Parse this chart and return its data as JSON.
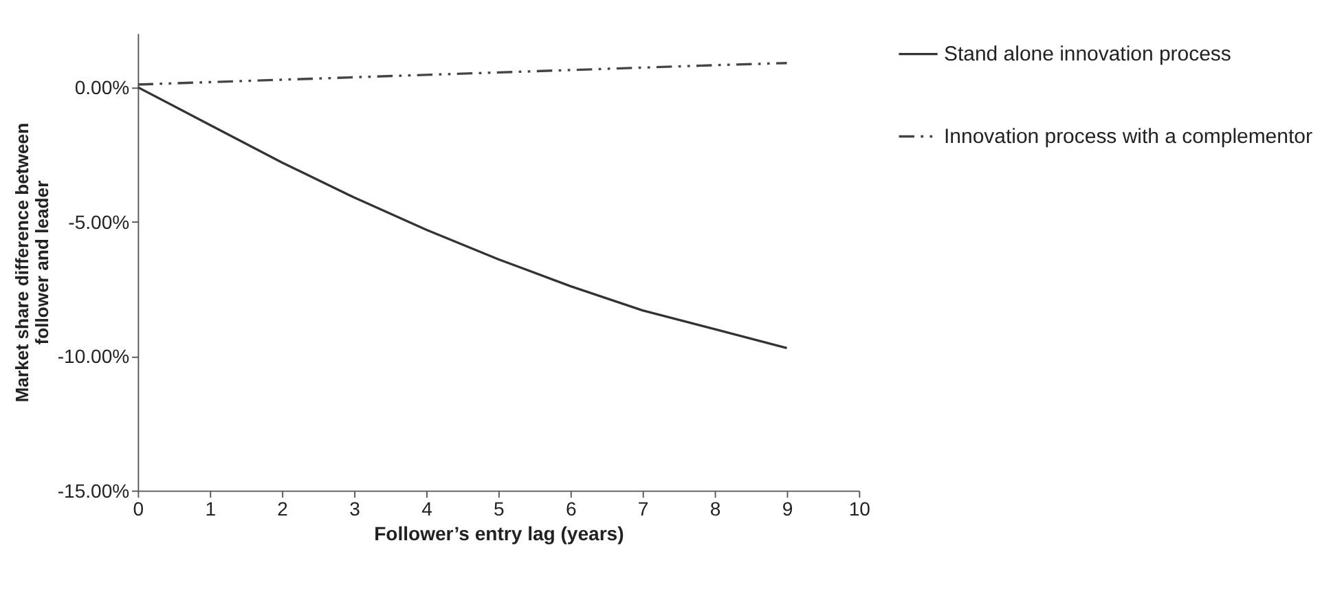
{
  "chart_data": {
    "type": "line",
    "xlabel": "Follower’s entry lag (years)",
    "ylabel": "Market share difference between follower and leader",
    "x": [
      0,
      1,
      2,
      3,
      4,
      5,
      6,
      7,
      8,
      9
    ],
    "series": [
      {
        "name": "Stand alone innovation process",
        "color": "#333333",
        "line_style": "solid",
        "values": [
          0,
          -1.4,
          -2.8,
          -4.1,
          -5.3,
          -6.4,
          -7.4,
          -8.3,
          -9.0,
          -9.7
        ]
      },
      {
        "name": "Innovation process with a complementor",
        "color": "#444444",
        "line_style": "dashed",
        "values": [
          0.1,
          0.19,
          0.28,
          0.37,
          0.46,
          0.55,
          0.64,
          0.73,
          0.82,
          0.9
        ]
      }
    ],
    "xlim": [
      0,
      10
    ],
    "xticks": [
      0,
      1,
      2,
      3,
      4,
      5,
      6,
      7,
      8,
      9,
      10
    ],
    "ylim": [
      -15,
      2
    ],
    "yticks": [
      {
        "value": -15,
        "label": "-15.00%"
      },
      {
        "value": -10,
        "label": "-10.00%"
      },
      {
        "value": -5,
        "label": "-5.00%"
      },
      {
        "value": 0,
        "label": "0.00%"
      }
    ],
    "grid": false,
    "legend": "right",
    "marker": "none"
  }
}
